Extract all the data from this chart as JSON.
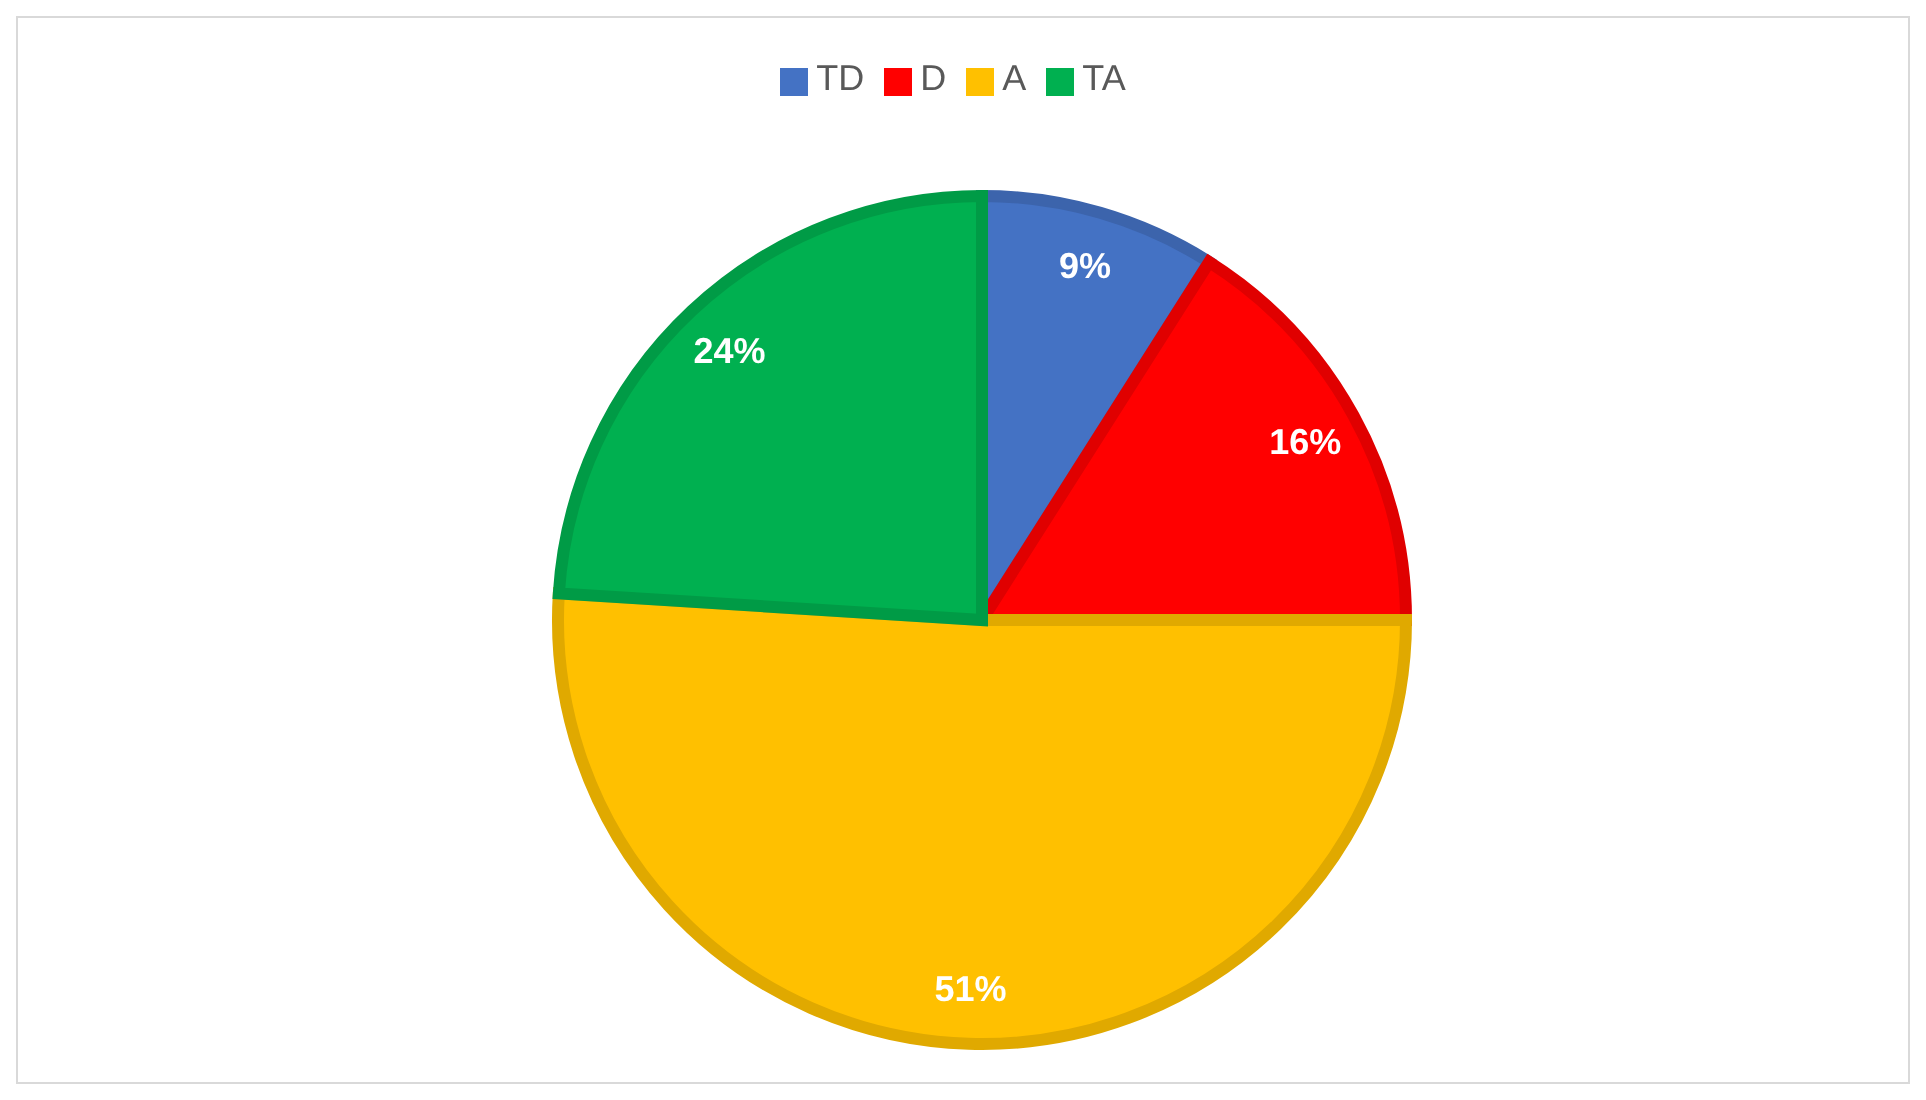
{
  "chart_data": {
    "type": "pie",
    "categories": [
      "TD",
      "D",
      "A",
      "TA"
    ],
    "values": [
      9,
      16,
      51,
      24
    ],
    "colors": [
      "#4472c4",
      "#ff0000",
      "#ffc000",
      "#00b050"
    ],
    "value_labels": [
      "9%",
      "16%",
      "51%",
      "24%"
    ],
    "legend": "top"
  }
}
